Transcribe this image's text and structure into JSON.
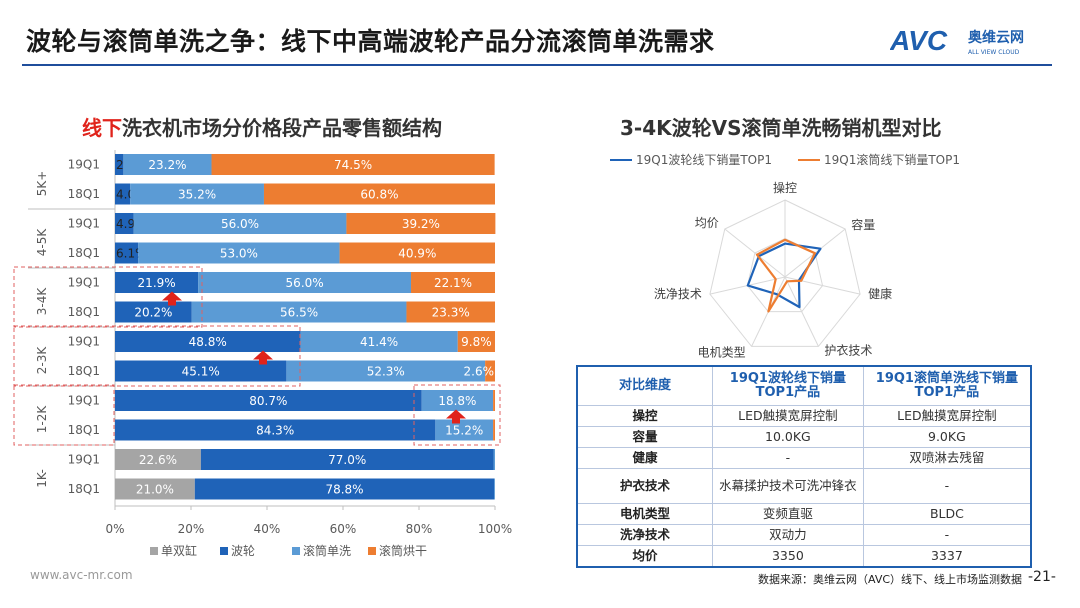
{
  "header": {
    "title": "波轮与滚筒单洗之争：线下中高端波轮产品分流滚筒单洗需求",
    "logo_text": "AVC",
    "logo_cn": "奥维云网",
    "logo_en": "ALL VIEW CLOUD"
  },
  "left_panel": {
    "title_highlight": "线下",
    "title_rest": "洗衣机市场分价格段产品零售额结构"
  },
  "right_panel": {
    "title": "3-4K波轮VS滚筒单洗畅销机型对比"
  },
  "colors": {
    "dan_shuang_gang": "#a5a5a5",
    "bo_lun": "#1f63b8",
    "gun_tong_dan_xi": "#5b9bd5",
    "gun_tong_hong_gan": "#ed7d31",
    "radar_bolun": "#1f63b8",
    "radar_guntong": "#ed7d31",
    "arrow": "#e0231b"
  },
  "chart_data": [
    {
      "type": "bar",
      "orientation": "horizontal",
      "stacked": true,
      "normalized": true,
      "groups": [
        "5K+",
        "4-5K",
        "3-4K",
        "2-3K",
        "1-2K",
        "1K-"
      ],
      "rows": [
        {
          "group": "5K+",
          "label": "19Q1",
          "values": [
            0,
            2.2,
            23.2,
            74.5
          ],
          "labels": [
            "",
            "2.2%",
            "23.2%",
            "74.5%"
          ]
        },
        {
          "group": "5K+",
          "label": "18Q1",
          "values": [
            0,
            4.0,
            35.2,
            60.8
          ],
          "labels": [
            "",
            "4.0%",
            "35.2%",
            "60.8%"
          ]
        },
        {
          "group": "4-5K",
          "label": "19Q1",
          "values": [
            0,
            4.9,
            56.0,
            39.2
          ],
          "labels": [
            "",
            "4.9%",
            "56.0%",
            "39.2%"
          ]
        },
        {
          "group": "4-5K",
          "label": "18Q1",
          "values": [
            0,
            6.1,
            53.0,
            40.9
          ],
          "labels": [
            "",
            "6.1%",
            "53.0%",
            "40.9%"
          ]
        },
        {
          "group": "3-4K",
          "label": "19Q1",
          "values": [
            0,
            21.9,
            56.0,
            22.1
          ],
          "labels": [
            "",
            "21.9%",
            "56.0%",
            "22.1%"
          ]
        },
        {
          "group": "3-4K",
          "label": "18Q1",
          "values": [
            0,
            20.2,
            56.5,
            23.3
          ],
          "labels": [
            "",
            "20.2%",
            "56.5%",
            "23.3%"
          ]
        },
        {
          "group": "2-3K",
          "label": "19Q1",
          "values": [
            0,
            48.8,
            41.4,
            9.8
          ],
          "labels": [
            "",
            "48.8%",
            "41.4%",
            "9.8%"
          ]
        },
        {
          "group": "2-3K",
          "label": "18Q1",
          "values": [
            0,
            45.1,
            52.3,
            2.6
          ],
          "labels": [
            "",
            "45.1%",
            "52.3%",
            "2.6%"
          ]
        },
        {
          "group": "1-2K",
          "label": "19Q1",
          "values": [
            0,
            80.7,
            18.8,
            0.5
          ],
          "labels": [
            "",
            "80.7%",
            "18.8%",
            ""
          ]
        },
        {
          "group": "1-2K",
          "label": "18Q1",
          "values": [
            0,
            84.3,
            15.2,
            0.5
          ],
          "labels": [
            "",
            "84.3%",
            "15.2%",
            ""
          ]
        },
        {
          "group": "1K-",
          "label": "19Q1",
          "values": [
            22.6,
            77.0,
            0.4,
            0
          ],
          "labels": [
            "22.6%",
            "77.0%",
            "",
            ""
          ]
        },
        {
          "group": "1K-",
          "label": "18Q1",
          "values": [
            21.0,
            78.8,
            0.2,
            0
          ],
          "labels": [
            "21.0%",
            "78.8%",
            "",
            ""
          ]
        }
      ],
      "series_names": [
        "单双缸",
        "波轮",
        "滚筒单洗",
        "滚筒烘干"
      ],
      "xlim": [
        0,
        100
      ],
      "xticks": [
        "0%",
        "20%",
        "40%",
        "60%",
        "80%",
        "100%"
      ],
      "legend": "bottom",
      "grid": false
    },
    {
      "type": "radar",
      "axes": [
        "操控",
        "容量",
        "健康",
        "护衣技术",
        "电机类型",
        "洗净技术",
        "均价"
      ],
      "series": [
        {
          "name": "19Q1波轮线下销量TOP1",
          "values": [
            0.7,
            0.95,
            0.3,
            0.7,
            0.4,
            0.8,
            0.7
          ]
        },
        {
          "name": "19Q1滚筒线下销量TOP1",
          "values": [
            0.78,
            0.8,
            0.35,
            0.1,
            0.8,
            0.2,
            0.75
          ]
        }
      ],
      "max": 1,
      "legend": "top"
    }
  ],
  "table": {
    "headers": [
      "对比维度",
      "19Q1波轮线下销量TOP1产品",
      "19Q1滚筒单洗线下销量TOP1产品"
    ],
    "rows": [
      {
        "dim": "操控",
        "a": "LED触摸宽屏控制",
        "b": "LED触摸宽屏控制"
      },
      {
        "dim": "容量",
        "a": "10.0KG",
        "b": "9.0KG"
      },
      {
        "dim": "健康",
        "a": "-",
        "b": "双喷淋去残留"
      },
      {
        "dim": "护衣技术",
        "a": "水幕揉护技术可洗冲锋衣",
        "b": "-"
      },
      {
        "dim": "电机类型",
        "a": "变频直驱",
        "b": "BLDC"
      },
      {
        "dim": "洗净技术",
        "a": "双动力",
        "b": "-"
      },
      {
        "dim": "均价",
        "a": "3350",
        "b": "3337"
      }
    ]
  },
  "footer": {
    "url": "www.avc-mr.com",
    "source": "数据来源：奥维云网（AVC）线下、线上市场监测数据",
    "page": "-21-"
  }
}
